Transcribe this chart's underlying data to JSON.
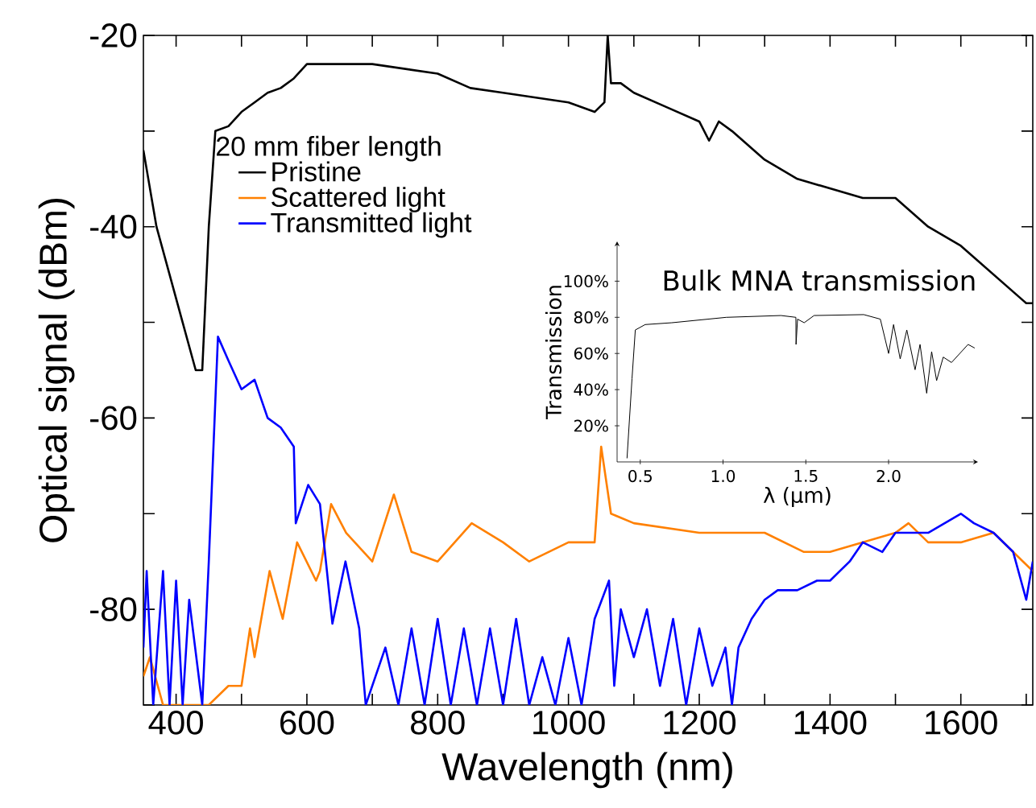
{
  "chart_data": [
    {
      "type": "line",
      "xlabel": "Wavelength (nm)",
      "ylabel": "Optical signal (dBm)",
      "legend_title": "20 mm fiber length",
      "legend": "top left",
      "xlim": [
        350,
        1710
      ],
      "ylim": [
        -90,
        -20
      ],
      "xticks": [
        400,
        {
          "value": 500,
          "label": null
        },
        600,
        {
          "value": 700,
          "label": null
        },
        800,
        {
          "value": 900,
          "label": null
        },
        1000,
        {
          "value": 1100,
          "label": null
        },
        1200,
        {
          "value": 1300,
          "label": null
        },
        1400,
        {
          "value": 1500,
          "label": null
        },
        1600,
        {
          "value": 1700,
          "label": null
        }
      ],
      "yticks": [
        {
          "value": -90,
          "label": null
        },
        -80,
        {
          "value": -70,
          "label": null
        },
        -60,
        {
          "value": -50,
          "label": null
        },
        -40,
        {
          "value": -30,
          "label": null
        },
        -20
      ],
      "series": [
        {
          "name": "Pristine",
          "color": "#000000",
          "x": [
            350,
            370,
            390,
            410,
            430,
            440,
            450,
            460,
            480,
            500,
            520,
            540,
            560,
            580,
            600,
            650,
            700,
            750,
            800,
            850,
            900,
            950,
            1000,
            1040,
            1055,
            1060,
            1065,
            1080,
            1100,
            1150,
            1200,
            1215,
            1230,
            1250,
            1300,
            1350,
            1400,
            1450,
            1500,
            1550,
            1600,
            1650,
            1700,
            1710
          ],
          "values": [
            -32,
            -40,
            -45,
            -50,
            -55,
            -55,
            -40,
            -30,
            -29.5,
            -28,
            -27,
            -26,
            -25.5,
            -24.5,
            -23,
            -23,
            -23,
            -23.5,
            -24,
            -25.5,
            -26,
            -26.5,
            -27,
            -28,
            -27,
            -20,
            -25,
            -25,
            -26,
            -27.5,
            -29,
            -31,
            -29,
            -30,
            -33,
            -35,
            -36,
            -37,
            -37,
            -40,
            -42,
            -45,
            -48,
            -48
          ]
        },
        {
          "name": "Scattered light",
          "color": "#ff8000",
          "x": [
            350,
            360,
            380,
            430,
            450,
            480,
            500,
            513,
            520,
            543,
            563,
            585,
            614,
            620,
            637,
            660,
            700,
            733,
            760,
            800,
            852,
            900,
            940,
            1000,
            1040,
            1050,
            1065,
            1100,
            1200,
            1300,
            1360,
            1400,
            1500,
            1520,
            1550,
            1600,
            1650,
            1710
          ],
          "values": [
            -87,
            -85,
            -90,
            -90,
            -90,
            -88,
            -88,
            -82,
            -85,
            -76,
            -81,
            -73,
            -77,
            -76,
            -69,
            -72,
            -75,
            -68,
            -74,
            -75,
            -71,
            -73,
            -75,
            -73,
            -73,
            -63,
            -70,
            -71,
            -72,
            -72,
            -74,
            -74,
            -72,
            -71,
            -73,
            -73,
            -72,
            -76
          ]
        },
        {
          "name": "Transmitted light",
          "color": "#0000ff",
          "x": [
            350,
            355,
            365,
            380,
            390,
            400,
            410,
            420,
            440,
            450,
            464,
            480,
            500,
            520,
            540,
            560,
            580,
            583,
            602,
            620,
            639,
            659,
            680,
            690,
            720,
            740,
            760,
            780,
            800,
            820,
            840,
            860,
            880,
            900,
            920,
            940,
            960,
            980,
            1000,
            1020,
            1040,
            1062,
            1070,
            1080,
            1100,
            1120,
            1140,
            1160,
            1180,
            1200,
            1220,
            1240,
            1250,
            1260,
            1280,
            1300,
            1320,
            1350,
            1380,
            1400,
            1430,
            1450,
            1480,
            1500,
            1550,
            1600,
            1620,
            1650,
            1680,
            1700,
            1710
          ],
          "values": [
            -84,
            -76,
            -90,
            -76,
            -90,
            -77,
            -90,
            -79,
            -90,
            -75,
            -51.5,
            -54,
            -57,
            -56,
            -60,
            -61,
            -63,
            -71,
            -67,
            -69,
            -81.5,
            -75,
            -82,
            -90,
            -84,
            -90,
            -82,
            -90,
            -81,
            -90,
            -82,
            -90,
            -82,
            -90,
            -81,
            -90,
            -85,
            -90,
            -83,
            -90,
            -81,
            -77,
            -88,
            -80,
            -85,
            -80,
            -88,
            -81,
            -90,
            -82,
            -88,
            -84,
            -90,
            -84,
            -81,
            -79,
            -78,
            -78,
            -77,
            -77,
            -75,
            -73,
            -74,
            -72,
            -72,
            -70,
            -71,
            -72,
            -74,
            -79,
            -75
          ]
        }
      ]
    },
    {
      "type": "line",
      "title": "Bulk MNA transmission",
      "xlabel": "λ (µm)",
      "ylabel": "Transmission",
      "xlim": [
        0.36,
        2.54
      ],
      "ylim": [
        0,
        122
      ],
      "xticks": [
        0.5,
        {
          "value": 1,
          "label": "1.0"
        },
        1.5,
        {
          "value": 2,
          "label": "2.0"
        }
      ],
      "yticks": [
        {
          "value": 20,
          "label": "20%"
        },
        {
          "value": 40,
          "label": "40%"
        },
        {
          "value": 60,
          "label": "60%"
        },
        {
          "value": 80,
          "label": "80%"
        },
        {
          "value": 100,
          "label": "100%"
        }
      ],
      "series": [
        {
          "color": "#000000",
          "x": [
            0.42,
            0.45,
            0.47,
            0.53,
            0.69,
            1.02,
            1.35,
            1.44,
            1.441,
            1.45,
            1.49,
            1.55,
            1.85,
            1.95,
            2.0,
            2.03,
            2.07,
            2.11,
            2.16,
            2.19,
            2.23,
            2.26,
            2.29,
            2.33,
            2.38,
            2.48,
            2.52
          ],
          "values": [
            2,
            46,
            73,
            76,
            77,
            80,
            81,
            80,
            65,
            79,
            77,
            81,
            81.5,
            79,
            60,
            76,
            57,
            73,
            51,
            65,
            38,
            61,
            45,
            58,
            55,
            65,
            63
          ]
        }
      ]
    }
  ]
}
